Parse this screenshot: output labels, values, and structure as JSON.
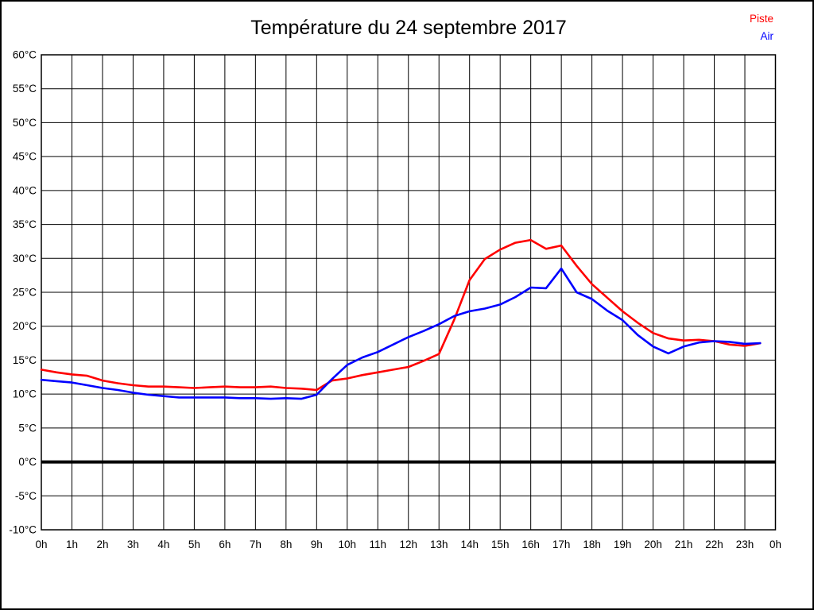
{
  "page": {
    "background": "#ffffff",
    "border_color": "#000000"
  },
  "chart_data": {
    "type": "line",
    "title": "Température du 24 septembre 2017",
    "xlabel": "",
    "ylabel": "",
    "xlim": [
      0,
      24
    ],
    "ylim": [
      -10,
      60
    ],
    "y_tick_step": 5,
    "y_tick_suffix": "°C",
    "grid": true,
    "grid_color": "#000000",
    "zero_line": true,
    "zero_line_width": 4,
    "frame_color": "#000000",
    "legend_position": "top-right",
    "x_tick_labels": [
      "0h",
      "1h",
      "2h",
      "3h",
      "4h",
      "5h",
      "6h",
      "7h",
      "8h",
      "9h",
      "10h",
      "11h",
      "12h",
      "13h",
      "14h",
      "15h",
      "16h",
      "17h",
      "18h",
      "19h",
      "20h",
      "21h",
      "22h",
      "23h",
      "0h"
    ],
    "y_tick_labels": [
      "60°C",
      "55°C",
      "50°C",
      "45°C",
      "40°C",
      "35°C",
      "30°C",
      "25°C",
      "20°C",
      "15°C",
      "10°C",
      "5°C",
      "0°C",
      "-5°C",
      "-10°C"
    ],
    "x": [
      0,
      0.5,
      1,
      1.5,
      2,
      2.5,
      3,
      3.5,
      4,
      4.5,
      5,
      5.5,
      6,
      6.5,
      7,
      7.5,
      8,
      8.5,
      9,
      9.5,
      10,
      10.5,
      11,
      11.5,
      12,
      12.5,
      13,
      13.5,
      14,
      14.5,
      15,
      15.5,
      16,
      16.5,
      17,
      17.5,
      18,
      18.5,
      19,
      19.5,
      20,
      20.5,
      21,
      21.5,
      22,
      22.5,
      23,
      23.5
    ],
    "series": [
      {
        "name": "Piste",
        "color": "#ff0000",
        "values": [
          13.6,
          13.2,
          12.9,
          12.7,
          12.0,
          11.6,
          11.3,
          11.1,
          11.1,
          11.0,
          10.9,
          11.0,
          11.1,
          11.0,
          11.0,
          11.1,
          10.9,
          10.8,
          10.6,
          12.0,
          12.3,
          12.8,
          13.2,
          13.6,
          14.0,
          14.9,
          15.9,
          21.0,
          26.8,
          29.9,
          31.3,
          32.3,
          32.7,
          31.4,
          31.9,
          28.9,
          26.2,
          24.2,
          22.2,
          20.5,
          19.0,
          18.2,
          17.9,
          18.0,
          17.8,
          17.3,
          17.1,
          17.5
        ]
      },
      {
        "name": "Air",
        "color": "#0000ff",
        "values": [
          12.1,
          11.9,
          11.7,
          11.3,
          10.9,
          10.6,
          10.2,
          9.9,
          9.7,
          9.5,
          9.5,
          9.5,
          9.5,
          9.4,
          9.4,
          9.3,
          9.4,
          9.3,
          9.9,
          12.2,
          14.3,
          15.4,
          16.2,
          17.3,
          18.4,
          19.3,
          20.3,
          21.5,
          22.2,
          22.6,
          23.2,
          24.3,
          25.7,
          25.6,
          28.5,
          25.0,
          24.0,
          22.3,
          20.9,
          18.7,
          17.0,
          16.0,
          17.0,
          17.6,
          17.8,
          17.7,
          17.4,
          17.5
        ]
      }
    ]
  }
}
